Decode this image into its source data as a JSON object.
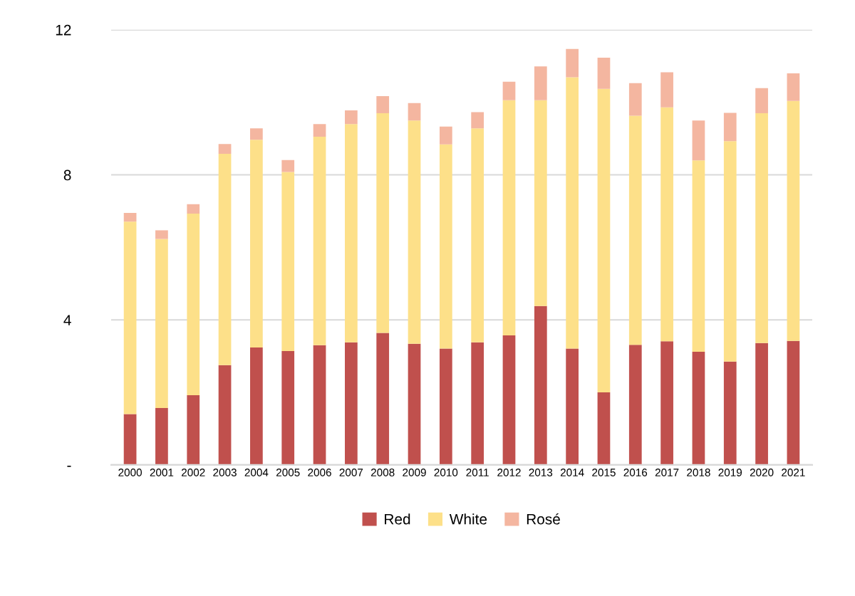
{
  "chart_data": {
    "type": "bar",
    "stacked": true,
    "categories": [
      "2000",
      "2001",
      "2002",
      "2003",
      "2004",
      "2005",
      "2006",
      "2007",
      "2008",
      "2009",
      "2010",
      "2011",
      "2012",
      "2013",
      "2014",
      "2015",
      "2016",
      "2017",
      "2018",
      "2019",
      "2020",
      "2021"
    ],
    "series": [
      {
        "name": "Red",
        "color": "#c0504d",
        "values": [
          1.4,
          1.57,
          1.92,
          2.75,
          3.24,
          3.14,
          3.3,
          3.38,
          3.64,
          3.34,
          3.21,
          3.38,
          3.57,
          4.38,
          3.21,
          2.0,
          3.31,
          3.41,
          3.12,
          2.85,
          3.36,
          3.42
        ]
      },
      {
        "name": "White",
        "color": "#fde089",
        "values": [
          5.31,
          4.66,
          5.01,
          5.83,
          5.73,
          4.94,
          5.75,
          6.02,
          6.06,
          6.16,
          5.63,
          5.9,
          6.49,
          5.68,
          7.48,
          8.37,
          6.32,
          6.45,
          5.28,
          6.08,
          6.34,
          6.62
        ]
      },
      {
        "name": "Rosé",
        "color": "#f4b6a0",
        "values": [
          0.24,
          0.24,
          0.26,
          0.27,
          0.31,
          0.33,
          0.35,
          0.38,
          0.47,
          0.48,
          0.49,
          0.45,
          0.51,
          0.93,
          0.78,
          0.86,
          0.9,
          0.97,
          1.1,
          0.78,
          0.69,
          0.76
        ]
      }
    ],
    "ylim": [
      0,
      12
    ],
    "yticks": [
      {
        "value": 0,
        "label": "-"
      },
      4,
      8,
      12
    ],
    "grid": "y",
    "legend": "bottom"
  }
}
